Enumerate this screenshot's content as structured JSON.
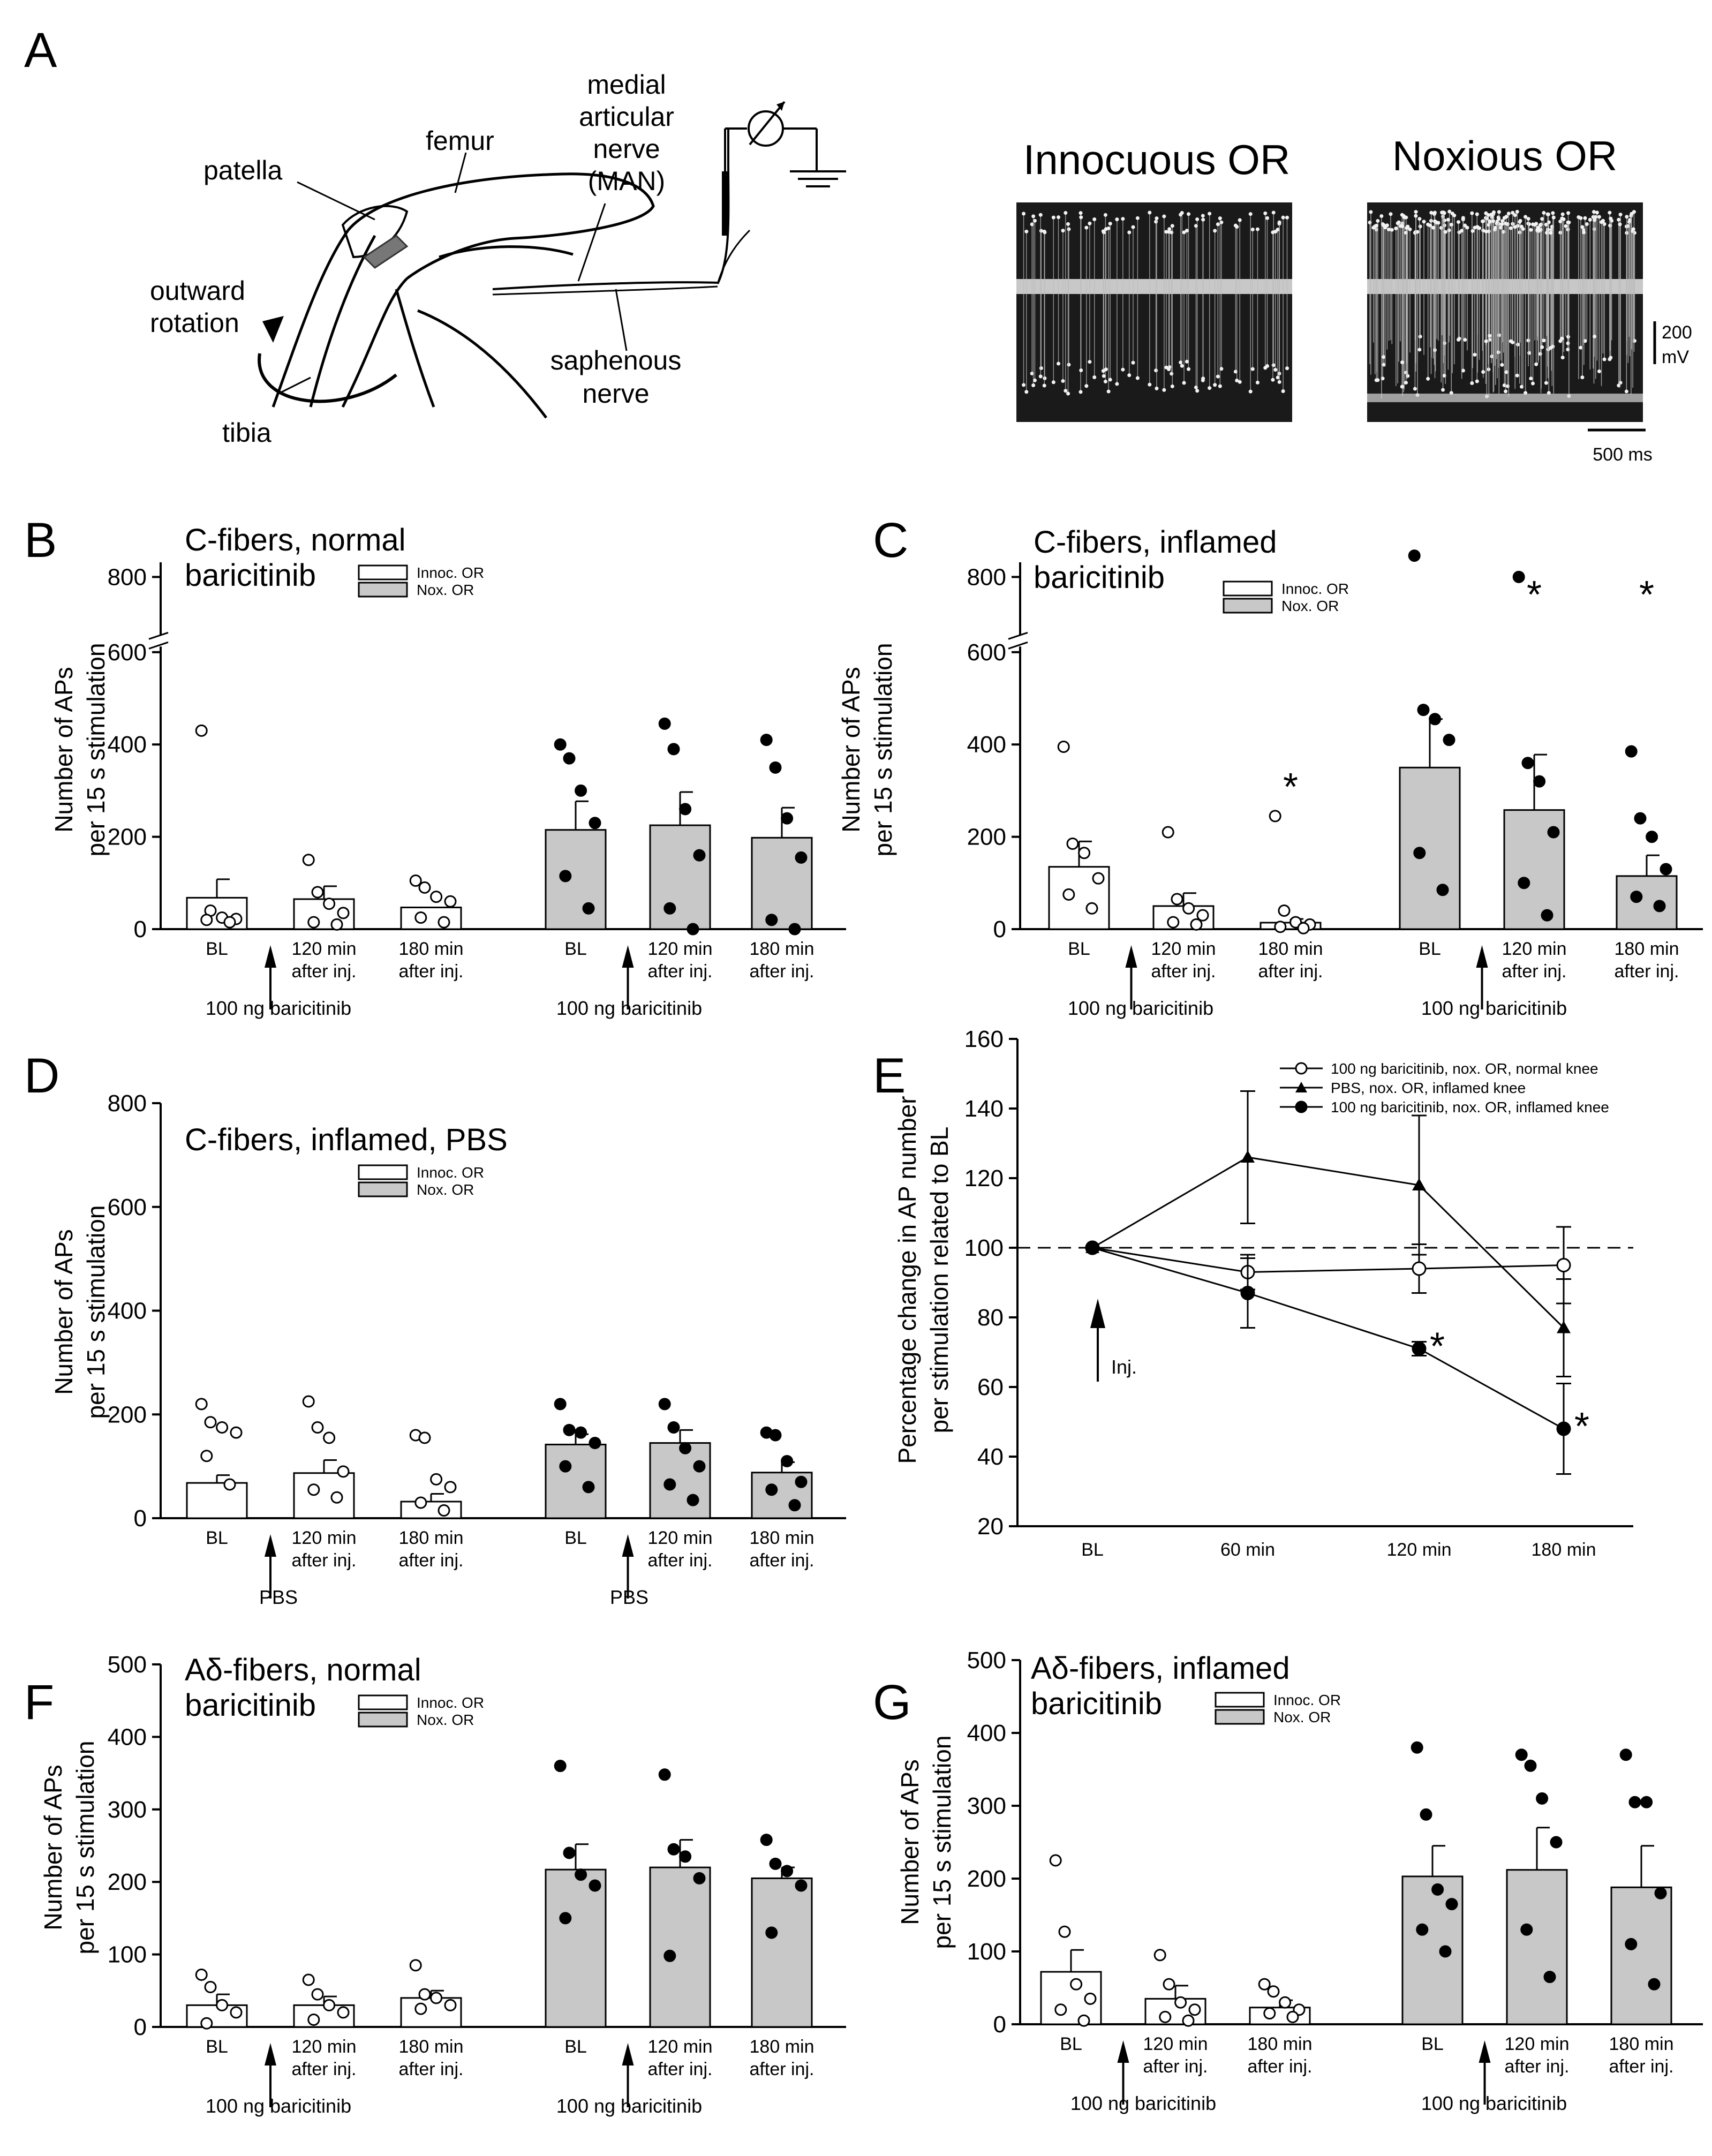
{
  "panels": {
    "A": {
      "label": "A",
      "diagram": {
        "patella": "patella",
        "femur": "femur",
        "nerve_1": "medial",
        "nerve_2": "articular",
        "nerve_3": "nerve",
        "nerve_4": "(MAN)",
        "rotation_1": "outward",
        "rotation_2": "rotation",
        "tibia": "tibia",
        "saphenous_1": "saphenous",
        "saphenous_2": "nerve"
      },
      "recordings": {
        "innocuous_title": "Innocuous OR",
        "noxious_title": "Noxious OR",
        "scale_v_1": "200",
        "scale_v_2": "mV",
        "scale_t": "500 ms"
      }
    },
    "B": {
      "label": "B",
      "title_1": "C-fibers, normal",
      "title_2": "baricitinib",
      "injection": "100 ng baricitinib"
    },
    "C": {
      "label": "C",
      "title_1": "C-fibers, inflamed",
      "title_2": "baricitinib",
      "injection": "100 ng baricitinib"
    },
    "D": {
      "label": "D",
      "title_1": "C-fibers, inflamed, PBS",
      "title_2": "",
      "injection": "PBS"
    },
    "E": {
      "label": "E",
      "inj_label": "Inj."
    },
    "F": {
      "label": "F",
      "title_1": "Aδ-fibers, normal",
      "title_2": "baricitinib",
      "injection": "100 ng baricitinib"
    },
    "G": {
      "label": "G",
      "title_1": "Aδ-fibers, inflamed",
      "title_2": "baricitinib",
      "injection": "100 ng baricitinib"
    }
  },
  "common": {
    "ylabel_1": "Number of APs",
    "ylabel_2": "per 15 s stimulation",
    "legend_innoc": "Innoc. OR",
    "legend_nox": "Nox. OR",
    "cat_bl": "BL",
    "cat_120_1": "120 min",
    "cat_180_1": "180 min",
    "cat_after": "after inj."
  },
  "colors": {
    "innoc_fill": "#ffffff",
    "nox_fill": "#c8c8c8",
    "stroke": "#000000"
  },
  "chart_data": [
    {
      "panel": "B",
      "type": "bar",
      "title": "C-fibers, normal baricitinib",
      "ylabel": "Number of APs per 15 s stimulation",
      "ylim": [
        0,
        800
      ],
      "axis_break": [
        600,
        800
      ],
      "yticks": [
        0,
        200,
        400,
        600,
        800
      ],
      "categories": [
        "BL",
        "120 min after inj.",
        "180 min after inj."
      ],
      "series": [
        {
          "name": "Innoc. OR",
          "values": [
            68,
            65,
            47
          ],
          "sem": [
            40,
            28,
            0
          ],
          "points": [
            [
              430,
              40,
              25,
              22,
              20,
              15
            ],
            [
              150,
              80,
              55,
              35,
              15,
              10
            ],
            [
              105,
              90,
              70,
              60,
              25,
              15
            ]
          ],
          "stars": [
            false,
            false,
            false
          ]
        },
        {
          "name": "Nox. OR",
          "values": [
            215,
            225,
            198
          ],
          "sem": [
            62,
            72,
            65
          ],
          "points": [
            [
              400,
              370,
              300,
              230,
              115,
              45
            ],
            [
              445,
              390,
              260,
              160,
              45,
              0
            ],
            [
              410,
              350,
              240,
              155,
              20,
              0
            ]
          ],
          "stars": [
            false,
            false,
            false
          ]
        }
      ]
    },
    {
      "panel": "C",
      "type": "bar",
      "title": "C-fibers, inflamed baricitinib",
      "ylabel": "Number of APs per 15 s stimulation",
      "ylim": [
        0,
        800
      ],
      "axis_break": [
        600,
        800
      ],
      "yticks": [
        0,
        200,
        400,
        600,
        800
      ],
      "categories": [
        "BL",
        "120 min after inj.",
        "180 min after inj."
      ],
      "series": [
        {
          "name": "Innoc. OR",
          "values": [
            135,
            50,
            14
          ],
          "sem": [
            55,
            28,
            8
          ],
          "points": [
            [
              395,
              185,
              165,
              110,
              75,
              45
            ],
            [
              210,
              65,
              45,
              30,
              15,
              10
            ],
            [
              245,
              40,
              15,
              10,
              5,
              2
            ]
          ],
          "stars": [
            false,
            false,
            true
          ]
        },
        {
          "name": "Nox. OR",
          "values": [
            350,
            258,
            115
          ],
          "sem": [
            105,
            120,
            45
          ],
          "points": [
            [
              880,
              475,
              455,
              410,
              165,
              85
            ],
            [
              800,
              360,
              320,
              210,
              100,
              30
            ],
            [
              385,
              240,
              200,
              130,
              70,
              50
            ]
          ],
          "stars": [
            false,
            true,
            true
          ]
        }
      ]
    },
    {
      "panel": "D",
      "type": "bar",
      "title": "C-fibers, inflamed, PBS",
      "ylabel": "Number of APs per 15 s stimulation",
      "ylim": [
        0,
        800
      ],
      "yticks": [
        0,
        200,
        400,
        600,
        800
      ],
      "categories": [
        "BL",
        "120 min after inj.",
        "180 min after inj."
      ],
      "series": [
        {
          "name": "Innoc. OR",
          "values": [
            68,
            87,
            32
          ],
          "sem": [
            15,
            25,
            15
          ],
          "points": [
            [
              220,
              185,
              175,
              165,
              120,
              65
            ],
            [
              225,
              175,
              155,
              90,
              55,
              40
            ],
            [
              160,
              155,
              75,
              60,
              30,
              15
            ]
          ],
          "stars": [
            false,
            false,
            false
          ]
        },
        {
          "name": "Nox. OR",
          "values": [
            142,
            145,
            88
          ],
          "sem": [
            20,
            25,
            20
          ],
          "points": [
            [
              220,
              170,
              165,
              145,
              100,
              60
            ],
            [
              220,
              175,
              135,
              100,
              65,
              35
            ],
            [
              165,
              160,
              110,
              70,
              55,
              25
            ]
          ],
          "stars": [
            false,
            false,
            false
          ]
        }
      ]
    },
    {
      "panel": "E",
      "type": "line",
      "ylabel": "Percentage change in AP number per stimulation related to BL",
      "xlabel": "",
      "x": [
        "BL",
        "60 min",
        "120 min",
        "180 min"
      ],
      "ylim": [
        20,
        160
      ],
      "yticks": [
        20,
        40,
        60,
        80,
        100,
        120,
        140,
        160
      ],
      "reference_line": 100,
      "series": [
        {
          "name": "100 ng baricitinib, nox. OR, normal knee",
          "marker": "open-circle",
          "values": [
            100,
            93,
            94,
            95
          ],
          "sem": [
            0,
            5,
            7,
            11
          ],
          "stars": [
            false,
            false,
            false,
            false
          ]
        },
        {
          "name": "PBS, nox. OR, inflamed knee",
          "marker": "filled-triangle",
          "values": [
            100,
            126,
            118,
            77
          ],
          "sem": [
            0,
            19,
            20,
            14
          ],
          "stars": [
            false,
            false,
            false,
            false
          ]
        },
        {
          "name": "100 ng baricitinib, nox. OR, inflamed knee",
          "marker": "filled-circle",
          "values": [
            100,
            87,
            71,
            48
          ],
          "sem": [
            0,
            10,
            2,
            13
          ],
          "stars": [
            false,
            false,
            true,
            true
          ]
        }
      ]
    },
    {
      "panel": "F",
      "type": "bar",
      "title": "Aδ-fibers, normal baricitinib",
      "ylabel": "Number of APs per 15 s stimulation",
      "ylim": [
        0,
        500
      ],
      "yticks": [
        0,
        100,
        200,
        300,
        400,
        500
      ],
      "categories": [
        "BL",
        "120 min after inj.",
        "180 min after inj."
      ],
      "series": [
        {
          "name": "Innoc. OR",
          "values": [
            30,
            30,
            40
          ],
          "sem": [
            15,
            12,
            10
          ],
          "points": [
            [
              72,
              55,
              30,
              20,
              5
            ],
            [
              65,
              45,
              30,
              20,
              10
            ],
            [
              85,
              45,
              40,
              30,
              25
            ]
          ],
          "stars": [
            false,
            false,
            false
          ]
        },
        {
          "name": "Nox. OR",
          "values": [
            217,
            220,
            205
          ],
          "sem": [
            35,
            38,
            15
          ],
          "points": [
            [
              360,
              240,
              210,
              195,
              150
            ],
            [
              348,
              245,
              235,
              205,
              98
            ],
            [
              258,
              225,
              215,
              195,
              130
            ]
          ],
          "stars": [
            false,
            false,
            false
          ]
        }
      ]
    },
    {
      "panel": "G",
      "type": "bar",
      "title": "Aδ-fibers, inflamed baricitinib",
      "ylabel": "Number of APs per 15 s stimulation",
      "ylim": [
        0,
        500
      ],
      "yticks": [
        0,
        100,
        200,
        300,
        400,
        500
      ],
      "categories": [
        "BL",
        "120 min after inj.",
        "180 min after inj."
      ],
      "series": [
        {
          "name": "Innoc. OR",
          "values": [
            72,
            35,
            23
          ],
          "sem": [
            30,
            18,
            10
          ],
          "points": [
            [
              225,
              127,
              55,
              35,
              20,
              5
            ],
            [
              95,
              55,
              30,
              20,
              10,
              5
            ],
            [
              55,
              45,
              30,
              20,
              15,
              10
            ]
          ],
          "stars": [
            false,
            false,
            false
          ]
        },
        {
          "name": "Nox. OR",
          "values": [
            203,
            212,
            188
          ],
          "sem": [
            42,
            58,
            57
          ],
          "points": [
            [
              380,
              288,
              185,
              165,
              130,
              100
            ],
            [
              370,
              355,
              310,
              250,
              130,
              65
            ],
            [
              370,
              305,
              305,
              180,
              110,
              55
            ]
          ],
          "stars": [
            false,
            false,
            false
          ]
        }
      ]
    }
  ]
}
